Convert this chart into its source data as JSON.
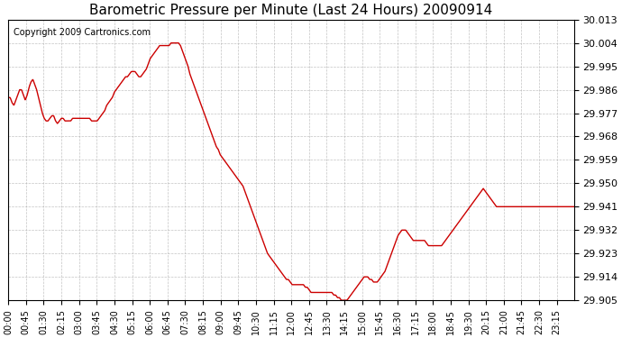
{
  "title": "Barometric Pressure per Minute (Last 24 Hours) 20090914",
  "copyright": "Copyright 2009 Cartronics.com",
  "line_color": "#cc0000",
  "background_color": "#ffffff",
  "grid_color": "#aaaaaa",
  "ylim": [
    29.905,
    30.013
  ],
  "yticks": [
    29.905,
    29.914,
    29.923,
    29.932,
    29.941,
    29.95,
    29.959,
    29.968,
    29.977,
    29.986,
    29.995,
    30.004,
    30.013
  ],
  "xtick_labels": [
    "00:00",
    "00:45",
    "01:30",
    "02:15",
    "03:00",
    "03:45",
    "04:30",
    "05:15",
    "06:00",
    "06:45",
    "07:30",
    "08:15",
    "09:00",
    "09:45",
    "10:30",
    "11:15",
    "12:00",
    "12:45",
    "13:30",
    "14:15",
    "15:00",
    "15:45",
    "16:30",
    "17:15",
    "18:00",
    "18:45",
    "19:30",
    "20:15",
    "21:00",
    "21:45",
    "22:30",
    "23:15"
  ],
  "pressure_data": [
    29.983,
    29.983,
    29.981,
    29.98,
    29.982,
    29.984,
    29.986,
    29.986,
    29.984,
    29.982,
    29.984,
    29.987,
    29.989,
    29.99,
    29.988,
    29.986,
    29.983,
    29.98,
    29.977,
    29.975,
    29.974,
    29.974,
    29.975,
    29.976,
    29.976,
    29.974,
    29.973,
    29.974,
    29.975,
    29.975,
    29.974,
    29.974,
    29.974,
    29.974,
    29.975,
    29.975,
    29.975,
    29.975,
    29.975,
    29.975,
    29.975,
    29.975,
    29.975,
    29.975,
    29.974,
    29.974,
    29.974,
    29.974,
    29.975,
    29.976,
    29.977,
    29.978,
    29.98,
    29.981,
    29.982,
    29.983,
    29.985,
    29.986,
    29.987,
    29.988,
    29.989,
    29.99,
    29.991,
    29.991,
    29.992,
    29.993,
    29.993,
    29.993,
    29.992,
    29.991,
    29.991,
    29.992,
    29.993,
    29.994,
    29.996,
    29.998,
    29.999,
    30.0,
    30.001,
    30.002,
    30.003,
    30.003,
    30.003,
    30.003,
    30.003,
    30.003,
    30.004,
    30.004,
    30.004,
    30.004,
    30.004,
    30.003,
    30.001,
    29.999,
    29.997,
    29.995,
    29.992,
    29.99,
    29.988,
    29.986,
    29.984,
    29.982,
    29.98,
    29.978,
    29.976,
    29.974,
    29.972,
    29.97,
    29.968,
    29.966,
    29.964,
    29.963,
    29.961,
    29.96,
    29.959,
    29.958,
    29.957,
    29.956,
    29.955,
    29.954,
    29.953,
    29.952,
    29.951,
    29.95,
    29.949,
    29.947,
    29.945,
    29.943,
    29.941,
    29.939,
    29.937,
    29.935,
    29.933,
    29.931,
    29.929,
    29.927,
    29.925,
    29.923,
    29.922,
    29.921,
    29.92,
    29.919,
    29.918,
    29.917,
    29.916,
    29.915,
    29.914,
    29.913,
    29.913,
    29.912,
    29.911,
    29.911,
    29.911,
    29.911,
    29.911,
    29.911,
    29.911,
    29.91,
    29.91,
    29.909,
    29.908,
    29.908,
    29.908,
    29.908,
    29.908,
    29.908,
    29.908,
    29.908,
    29.908,
    29.908,
    29.908,
    29.908,
    29.907,
    29.907,
    29.906,
    29.906,
    29.905,
    29.905,
    29.905,
    29.905,
    29.906,
    29.907,
    29.908,
    29.909,
    29.91,
    29.911,
    29.912,
    29.913,
    29.914,
    29.914,
    29.914,
    29.913,
    29.913,
    29.912,
    29.912,
    29.912,
    29.913,
    29.914,
    29.915,
    29.916,
    29.918,
    29.92,
    29.922,
    29.924,
    29.926,
    29.928,
    29.93,
    29.931,
    29.932,
    29.932,
    29.932,
    29.931,
    29.93,
    29.929,
    29.928,
    29.928,
    29.928,
    29.928,
    29.928,
    29.928,
    29.928,
    29.927,
    29.926,
    29.926,
    29.926,
    29.926,
    29.926,
    29.926,
    29.926,
    29.926,
    29.927,
    29.928,
    29.929,
    29.93,
    29.931,
    29.932,
    29.933,
    29.934,
    29.935,
    29.936,
    29.937,
    29.938,
    29.939,
    29.94,
    29.941,
    29.942,
    29.943,
    29.944,
    29.945,
    29.946,
    29.947,
    29.948,
    29.947,
    29.946,
    29.945,
    29.944,
    29.943,
    29.942,
    29.941,
    29.941,
    29.941,
    29.941,
    29.941,
    29.941,
    29.941,
    29.941,
    29.941,
    29.941,
    29.941,
    29.941,
    29.941,
    29.941,
    29.941,
    29.941,
    29.941,
    29.941,
    29.941,
    29.941,
    29.941,
    29.941,
    29.941,
    29.941,
    29.941,
    29.941,
    29.941,
    29.941,
    29.941,
    29.941,
    29.941,
    29.941,
    29.941,
    29.941,
    29.941,
    29.941,
    29.941,
    29.941,
    29.941,
    29.941,
    29.941,
    29.941
  ]
}
